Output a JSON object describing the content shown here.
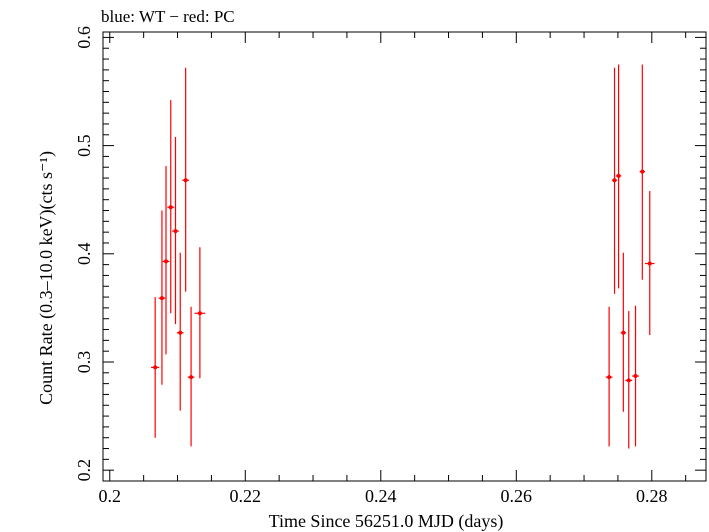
{
  "chart_data": {
    "type": "scatter",
    "title": "blue: WT − red: PC",
    "xlabel": "Time Since 56251.0 MJD (days)",
    "ylabel": "Count Rate (0.3–10.0 keV)(cts s⁻¹)",
    "xlim": [
      0.199,
      0.288
    ],
    "ylim": [
      0.19,
      0.605
    ],
    "x_ticks": [
      {
        "value": 0.2,
        "label": "0.2"
      },
      {
        "value": 0.22,
        "label": "0.22"
      },
      {
        "value": 0.24,
        "label": "0.24"
      },
      {
        "value": 0.26,
        "label": "0.26"
      },
      {
        "value": 0.28,
        "label": "0.28"
      }
    ],
    "y_ticks": [
      {
        "value": 0.2,
        "label": "0.2"
      },
      {
        "value": 0.3,
        "label": "0.3"
      },
      {
        "value": 0.4,
        "label": "0.4"
      },
      {
        "value": 0.5,
        "label": "0.5"
      },
      {
        "value": 0.6,
        "label": "0.6"
      }
    ],
    "series": [
      {
        "name": "PC",
        "color": "#ff0000",
        "points": [
          {
            "x": 0.2067,
            "y": 0.295,
            "xerr": 0.0006,
            "ylo": 0.23,
            "yhi": 0.36
          },
          {
            "x": 0.2077,
            "y": 0.359,
            "xerr": 0.0005,
            "ylo": 0.279,
            "yhi": 0.44
          },
          {
            "x": 0.2083,
            "y": 0.393,
            "xerr": 0.0005,
            "ylo": 0.307,
            "yhi": 0.481
          },
          {
            "x": 0.209,
            "y": 0.443,
            "xerr": 0.0005,
            "ylo": 0.345,
            "yhi": 0.542
          },
          {
            "x": 0.2097,
            "y": 0.421,
            "xerr": 0.0005,
            "ylo": 0.335,
            "yhi": 0.508
          },
          {
            "x": 0.2104,
            "y": 0.327,
            "xerr": 0.0005,
            "ylo": 0.255,
            "yhi": 0.401
          },
          {
            "x": 0.2112,
            "y": 0.468,
            "xerr": 0.0005,
            "ylo": 0.365,
            "yhi": 0.572
          },
          {
            "x": 0.212,
            "y": 0.286,
            "xerr": 0.0005,
            "ylo": 0.222,
            "yhi": 0.351
          },
          {
            "x": 0.2133,
            "y": 0.345,
            "xerr": 0.0008,
            "ylo": 0.285,
            "yhi": 0.406
          },
          {
            "x": 0.2737,
            "y": 0.286,
            "xerr": 0.0005,
            "ylo": 0.222,
            "yhi": 0.351
          },
          {
            "x": 0.2745,
            "y": 0.468,
            "xerr": 0.0004,
            "ylo": 0.363,
            "yhi": 0.572
          },
          {
            "x": 0.2751,
            "y": 0.472,
            "xerr": 0.0004,
            "ylo": 0.368,
            "yhi": 0.575
          },
          {
            "x": 0.2758,
            "y": 0.327,
            "xerr": 0.0004,
            "ylo": 0.254,
            "yhi": 0.401
          },
          {
            "x": 0.2766,
            "y": 0.283,
            "xerr": 0.0005,
            "ylo": 0.22,
            "yhi": 0.347
          },
          {
            "x": 0.2776,
            "y": 0.287,
            "xerr": 0.0005,
            "ylo": 0.222,
            "yhi": 0.352
          },
          {
            "x": 0.2786,
            "y": 0.476,
            "xerr": 0.0004,
            "ylo": 0.376,
            "yhi": 0.575
          },
          {
            "x": 0.2797,
            "y": 0.391,
            "xerr": 0.0007,
            "ylo": 0.325,
            "yhi": 0.458
          }
        ]
      }
    ],
    "grid": false
  }
}
